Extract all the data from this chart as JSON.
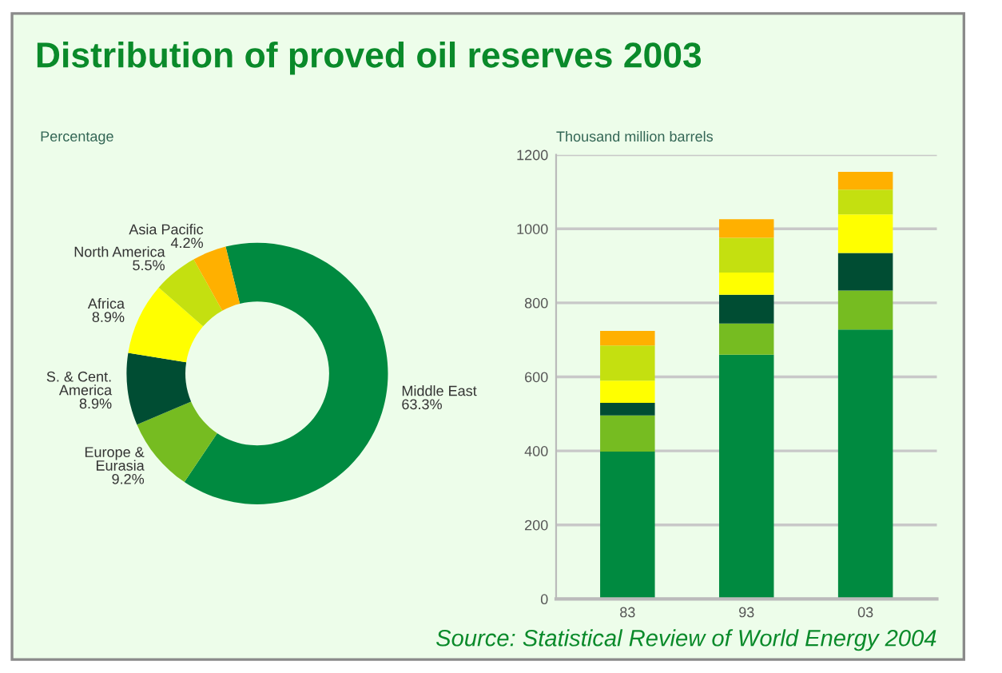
{
  "chart_data": [
    {
      "type": "donut",
      "title": "Distribution of proved oil reserves 2003",
      "subtitle": "Percentage",
      "categories": [
        "Middle East",
        "Europe &\nEurasia",
        "S. & Cent.\nAmerica",
        "Africa",
        "North America",
        "Asia Pacific"
      ],
      "values": [
        63.3,
        9.2,
        8.9,
        8.9,
        5.5,
        4.2
      ],
      "value_labels": [
        "63.3%",
        "9.2%",
        "8.9%",
        "8.9%",
        "5.5%",
        "4.2%"
      ],
      "colors": [
        "#008a40",
        "#76bc21",
        "#004d33",
        "#ffff00",
        "#c4e010",
        "#ffb000"
      ],
      "legend": false
    },
    {
      "type": "bar",
      "stacked": true,
      "ylabel": "Thousand million barrels",
      "categories": [
        "83",
        "93",
        "03"
      ],
      "series": [
        {
          "color": "#008a40",
          "values": [
            398,
            660,
            728
          ]
        },
        {
          "color": "#76bc21",
          "values": [
            98,
            84,
            105
          ]
        },
        {
          "color": "#004d33",
          "values": [
            34,
            78,
            102
          ]
        },
        {
          "color": "#ffff00",
          "values": [
            60,
            60,
            104
          ]
        },
        {
          "color": "#c4e010",
          "values": [
            95,
            94,
            67
          ]
        },
        {
          "color": "#ffb000",
          "values": [
            39,
            50,
            48
          ]
        }
      ],
      "ylim": [
        0,
        1200
      ],
      "yticks": [
        0,
        200,
        400,
        600,
        800,
        1000,
        1200
      ],
      "grid": "y",
      "legend": false,
      "annotations": [
        "Source: Statistical Review of World Energy 2004"
      ]
    }
  ]
}
